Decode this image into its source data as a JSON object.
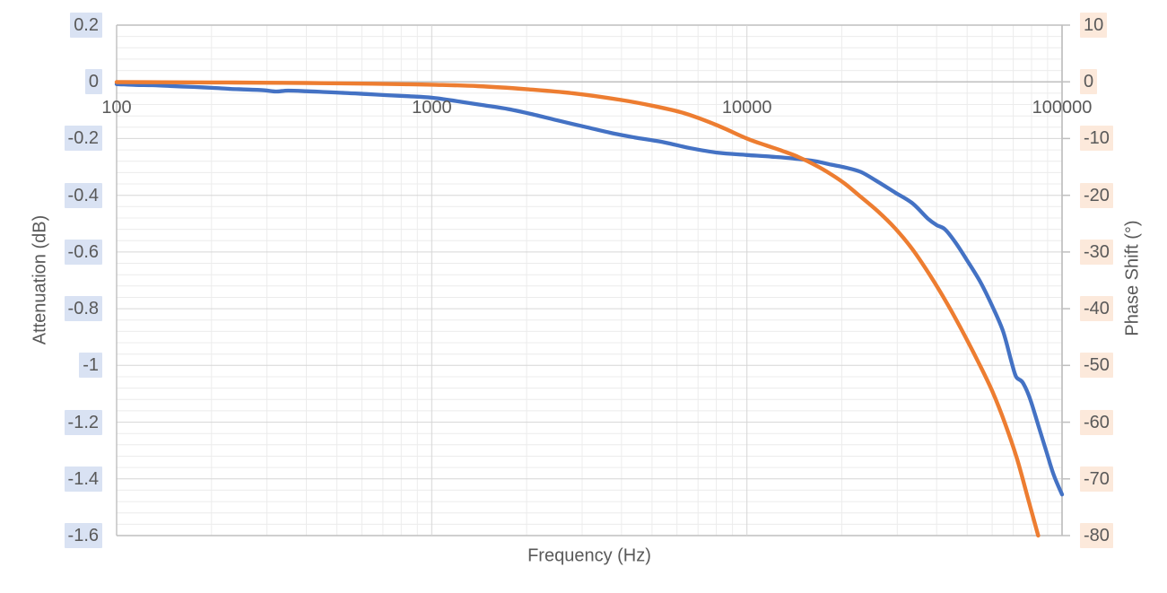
{
  "chart_data": {
    "type": "line",
    "title": "",
    "x_axis": {
      "label": "Frequency (Hz)",
      "scale": "log",
      "min": 100,
      "max": 100000,
      "tick_values": [
        100,
        1000,
        10000,
        100000
      ],
      "tick_labels": [
        "100",
        "1000",
        "10000",
        "100000"
      ]
    },
    "y_axis_left": {
      "label": "Attenuation (dB)",
      "min": -1.6,
      "max": 0.2,
      "step": 0.2,
      "tick_values": [
        0.2,
        0,
        -0.2,
        -0.4,
        -0.6,
        -0.8,
        -1,
        -1.2,
        -1.4,
        -1.6
      ],
      "tick_labels": [
        "0.2",
        "0",
        "-0.2",
        "-0.4",
        "-0.6",
        "-0.8",
        "-1",
        "-1.2",
        "-1.4",
        "-1.6"
      ],
      "label_highlight_color": "#D9E2F3"
    },
    "y_axis_right": {
      "label": "Phase Shift (°)",
      "min": -80,
      "max": 10,
      "step": 10,
      "tick_values": [
        10,
        0,
        -10,
        -20,
        -30,
        -40,
        -50,
        -60,
        -70,
        -80
      ],
      "tick_labels": [
        "10",
        "0",
        "-10",
        "-20",
        "-30",
        "-40",
        "-50",
        "-60",
        "-70",
        "-80"
      ],
      "label_highlight_color": "#FCE9DB"
    },
    "grid": {
      "minor_on": true,
      "major_on": true,
      "minor_color": "#ECECEC",
      "major_color": "#D6D6D6",
      "axis_color": "#BFBFBF",
      "minor_step_left_axis": 0.04,
      "minor_step_right_axis": 2
    },
    "legend": "none",
    "text_color": "#595959",
    "series": [
      {
        "name": "Attenuation",
        "axis": "left",
        "color": "#4472C4",
        "stroke_width": 4.3,
        "points": [
          [
            100,
            -0.008
          ],
          [
            115,
            -0.011
          ],
          [
            130,
            -0.012
          ],
          [
            150,
            -0.015
          ],
          [
            175,
            -0.018
          ],
          [
            200,
            -0.021
          ],
          [
            230,
            -0.025
          ],
          [
            260,
            -0.027
          ],
          [
            295,
            -0.03
          ],
          [
            320,
            -0.034
          ],
          [
            350,
            -0.031
          ],
          [
            400,
            -0.033
          ],
          [
            460,
            -0.036
          ],
          [
            530,
            -0.039
          ],
          [
            620,
            -0.043
          ],
          [
            720,
            -0.047
          ],
          [
            850,
            -0.051
          ],
          [
            1000,
            -0.056
          ],
          [
            1200,
            -0.068
          ],
          [
            1450,
            -0.082
          ],
          [
            1750,
            -0.096
          ],
          [
            2100,
            -0.115
          ],
          [
            2550,
            -0.138
          ],
          [
            3100,
            -0.16
          ],
          [
            3700,
            -0.18
          ],
          [
            4400,
            -0.196
          ],
          [
            5450,
            -0.213
          ],
          [
            6620,
            -0.234
          ],
          [
            8100,
            -0.25
          ],
          [
            10000,
            -0.258
          ],
          [
            12000,
            -0.264
          ],
          [
            14000,
            -0.27
          ],
          [
            16500,
            -0.28
          ],
          [
            18500,
            -0.292
          ],
          [
            20500,
            -0.302
          ],
          [
            23000,
            -0.318
          ],
          [
            26000,
            -0.352
          ],
          [
            29500,
            -0.39
          ],
          [
            33500,
            -0.428
          ],
          [
            37500,
            -0.482
          ],
          [
            40000,
            -0.505
          ],
          [
            42500,
            -0.52
          ],
          [
            46000,
            -0.568
          ],
          [
            50000,
            -0.63
          ],
          [
            55000,
            -0.705
          ],
          [
            60000,
            -0.79
          ],
          [
            65000,
            -0.88
          ],
          [
            69000,
            -0.985
          ],
          [
            71500,
            -1.04
          ],
          [
            75000,
            -1.06
          ],
          [
            79000,
            -1.115
          ],
          [
            84000,
            -1.21
          ],
          [
            89000,
            -1.3
          ],
          [
            94000,
            -1.385
          ],
          [
            100000,
            -1.455
          ]
        ]
      },
      {
        "name": "Phase Shift",
        "axis": "right",
        "color": "#ED7D31",
        "stroke_width": 4.4,
        "points": [
          [
            100,
            -0.05
          ],
          [
            140,
            -0.07
          ],
          [
            200,
            -0.1
          ],
          [
            280,
            -0.15
          ],
          [
            400,
            -0.21
          ],
          [
            560,
            -0.29
          ],
          [
            800,
            -0.4
          ],
          [
            1000,
            -0.5
          ],
          [
            1400,
            -0.75
          ],
          [
            2000,
            -1.3
          ],
          [
            2800,
            -2.0
          ],
          [
            4000,
            -3.2
          ],
          [
            5000,
            -4.2
          ],
          [
            6300,
            -5.5
          ],
          [
            8000,
            -7.6
          ],
          [
            10000,
            -10.0
          ],
          [
            11500,
            -11.2
          ],
          [
            13000,
            -12.2
          ],
          [
            14500,
            -13.2
          ],
          [
            16500,
            -14.7
          ],
          [
            18500,
            -16.3
          ],
          [
            20500,
            -18.0
          ],
          [
            23000,
            -20.3
          ],
          [
            26000,
            -22.8
          ],
          [
            29500,
            -25.8
          ],
          [
            33500,
            -29.5
          ],
          [
            38000,
            -34.0
          ],
          [
            43000,
            -38.9
          ],
          [
            48000,
            -43.7
          ],
          [
            54000,
            -49.2
          ],
          [
            60000,
            -54.5
          ],
          [
            66000,
            -60.3
          ],
          [
            72000,
            -66.5
          ],
          [
            78000,
            -73.5
          ],
          [
            84000,
            -80.0
          ]
        ]
      }
    ]
  }
}
